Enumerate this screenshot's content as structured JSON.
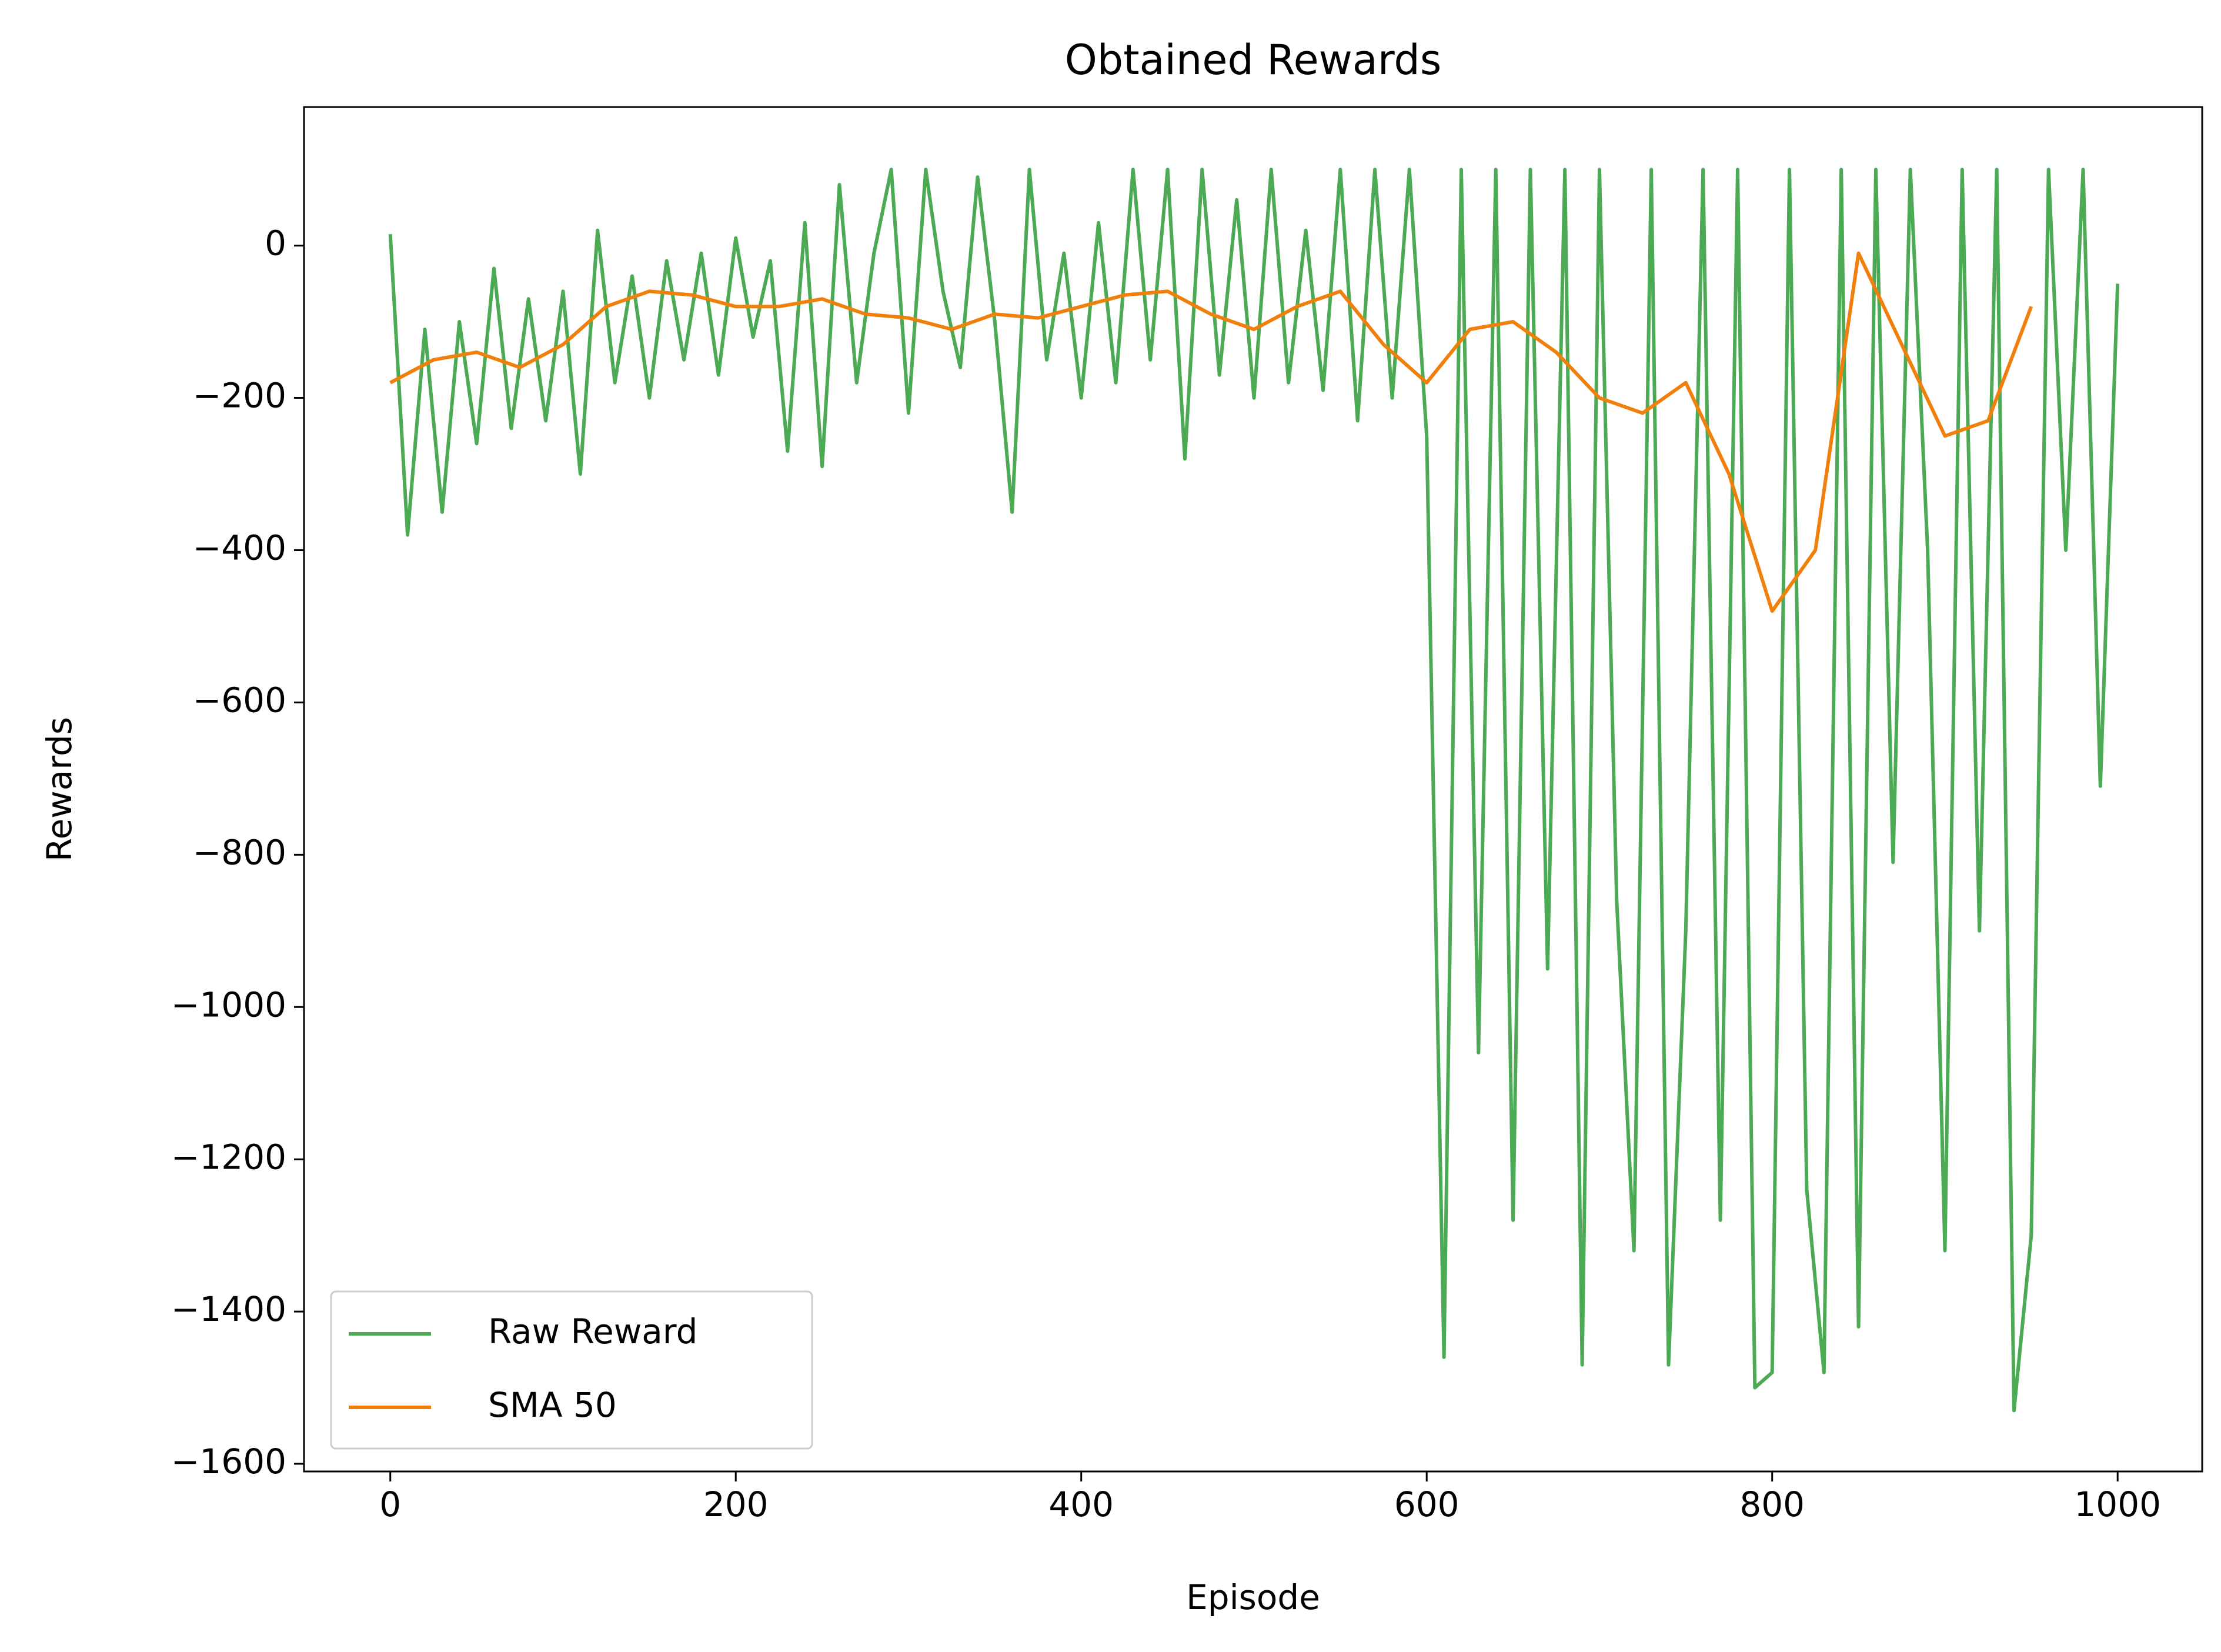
{
  "chart_data": {
    "type": "line",
    "title": "Obtained Rewards",
    "x_label": "Episode",
    "y_label": "Rewards",
    "xlim": [
      -49.95,
      1048.95
    ],
    "xticks": [
      0,
      200,
      400,
      600,
      800,
      1000
    ],
    "ylim": [
      -1610,
      182
    ],
    "yticks": [
      0,
      {
        "value": -200,
        "label": "−200"
      },
      {
        "value": -400,
        "label": "−400"
      },
      {
        "value": -600,
        "label": "−600"
      },
      {
        "value": -800,
        "label": "−800"
      },
      {
        "value": -1000,
        "label": "−1000"
      },
      {
        "value": -1200,
        "label": "−1200"
      },
      {
        "value": -1400,
        "label": "−1400"
      },
      {
        "value": -1600,
        "label": "−1600"
      }
    ],
    "legend": "lower left",
    "grid": false,
    "series": [
      {
        "name": "Raw Reward",
        "color": "#4caa54",
        "x": [
          0,
          10,
          20,
          30,
          40,
          50,
          60,
          70,
          80,
          90,
          100,
          110,
          120,
          130,
          140,
          150,
          160,
          170,
          180,
          190,
          200,
          210,
          220,
          230,
          240,
          250,
          260,
          270,
          280,
          290,
          300,
          310,
          320,
          330,
          340,
          350,
          360,
          370,
          380,
          390,
          400,
          410,
          420,
          430,
          440,
          450,
          460,
          470,
          480,
          490,
          500,
          510,
          520,
          530,
          540,
          550,
          560,
          570,
          580,
          590,
          600,
          610,
          620,
          630,
          640,
          650,
          660,
          670,
          680,
          690,
          700,
          710,
          720,
          730,
          740,
          750,
          760,
          770,
          780,
          790,
          800,
          810,
          820,
          830,
          840,
          850,
          860,
          870,
          880,
          890,
          900,
          910,
          920,
          930,
          940,
          950,
          960,
          970,
          980,
          990,
          1000
        ],
        "values": [
          15,
          -380,
          -110,
          -350,
          -100,
          -260,
          -30,
          -240,
          -70,
          -230,
          -60,
          -300,
          20,
          -180,
          -40,
          -200,
          -20,
          -150,
          -10,
          -170,
          10,
          -120,
          -20,
          -270,
          30,
          -290,
          80,
          -180,
          -10,
          100,
          -220,
          100,
          -60,
          -160,
          90,
          -100,
          -350,
          100,
          -150,
          -10,
          -200,
          30,
          -180,
          100,
          -150,
          100,
          -280,
          100,
          -170,
          60,
          -200,
          100,
          -180,
          20,
          -190,
          100,
          -230,
          100,
          -200,
          100,
          -250,
          -1460,
          100,
          -1060,
          100,
          -1280,
          100,
          -950,
          100,
          -1470,
          100,
          -860,
          -1320,
          100,
          -1470,
          -900,
          100,
          -1280,
          100,
          -1500,
          -1480,
          100,
          -1240,
          -1480,
          100,
          -1420,
          100,
          -810,
          100,
          -400,
          -1320,
          100,
          -900,
          100,
          -1530,
          -1300,
          100,
          -400,
          100,
          -710,
          -50
        ]
      },
      {
        "name": "SMA 50",
        "color": "#f07f0c",
        "x": [
          0,
          25,
          50,
          75,
          100,
          125,
          150,
          175,
          200,
          225,
          250,
          275,
          300,
          325,
          350,
          375,
          400,
          425,
          450,
          475,
          500,
          525,
          550,
          575,
          600,
          625,
          650,
          675,
          700,
          725,
          750,
          775,
          800,
          825,
          850,
          875,
          900,
          925,
          950
        ],
        "values": [
          -180,
          -150,
          -140,
          -160,
          -130,
          -80,
          -60,
          -65,
          -80,
          -80,
          -70,
          -90,
          -95,
          -110,
          -90,
          -95,
          -80,
          -65,
          -60,
          -90,
          -110,
          -80,
          -60,
          -130,
          -180,
          -110,
          -100,
          -140,
          -200,
          -220,
          -180,
          -300,
          -480,
          -400,
          -10,
          -130,
          -250,
          -230,
          -80
        ]
      }
    ]
  }
}
